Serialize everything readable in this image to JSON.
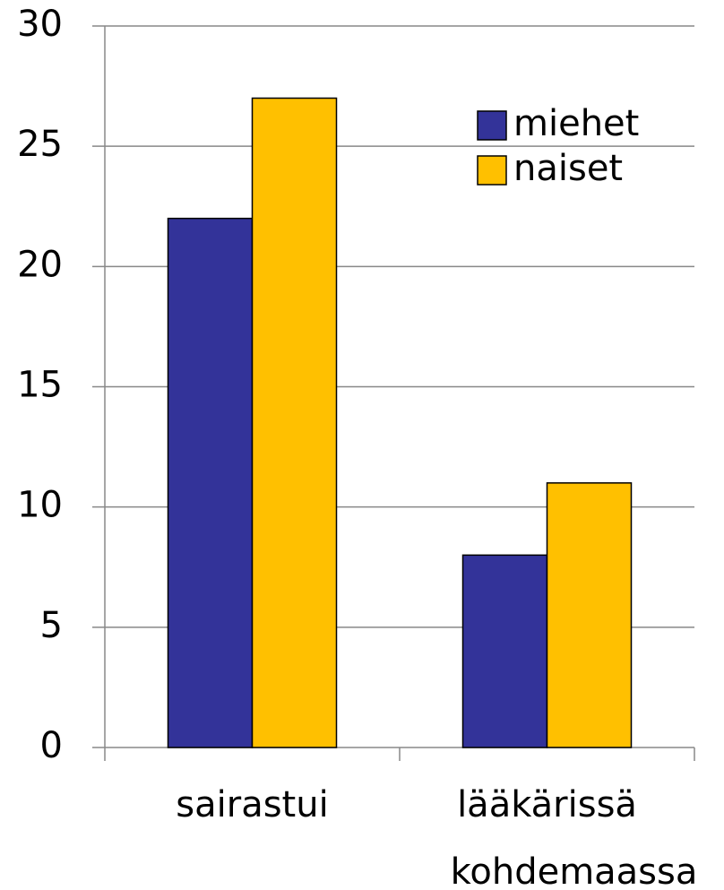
{
  "chart_data": {
    "type": "bar",
    "categories": [
      "sairastui",
      "lääkärissä kohdemaassa"
    ],
    "series": [
      {
        "name": "miehet",
        "color": "#333399",
        "values": [
          22,
          8
        ]
      },
      {
        "name": "naiset",
        "color": "#ffc000",
        "values": [
          27,
          11
        ]
      }
    ],
    "ylim": [
      0,
      30
    ],
    "yticks": [
      0,
      5,
      10,
      15,
      20,
      25,
      30
    ],
    "grid": true,
    "legend": "top-right"
  }
}
